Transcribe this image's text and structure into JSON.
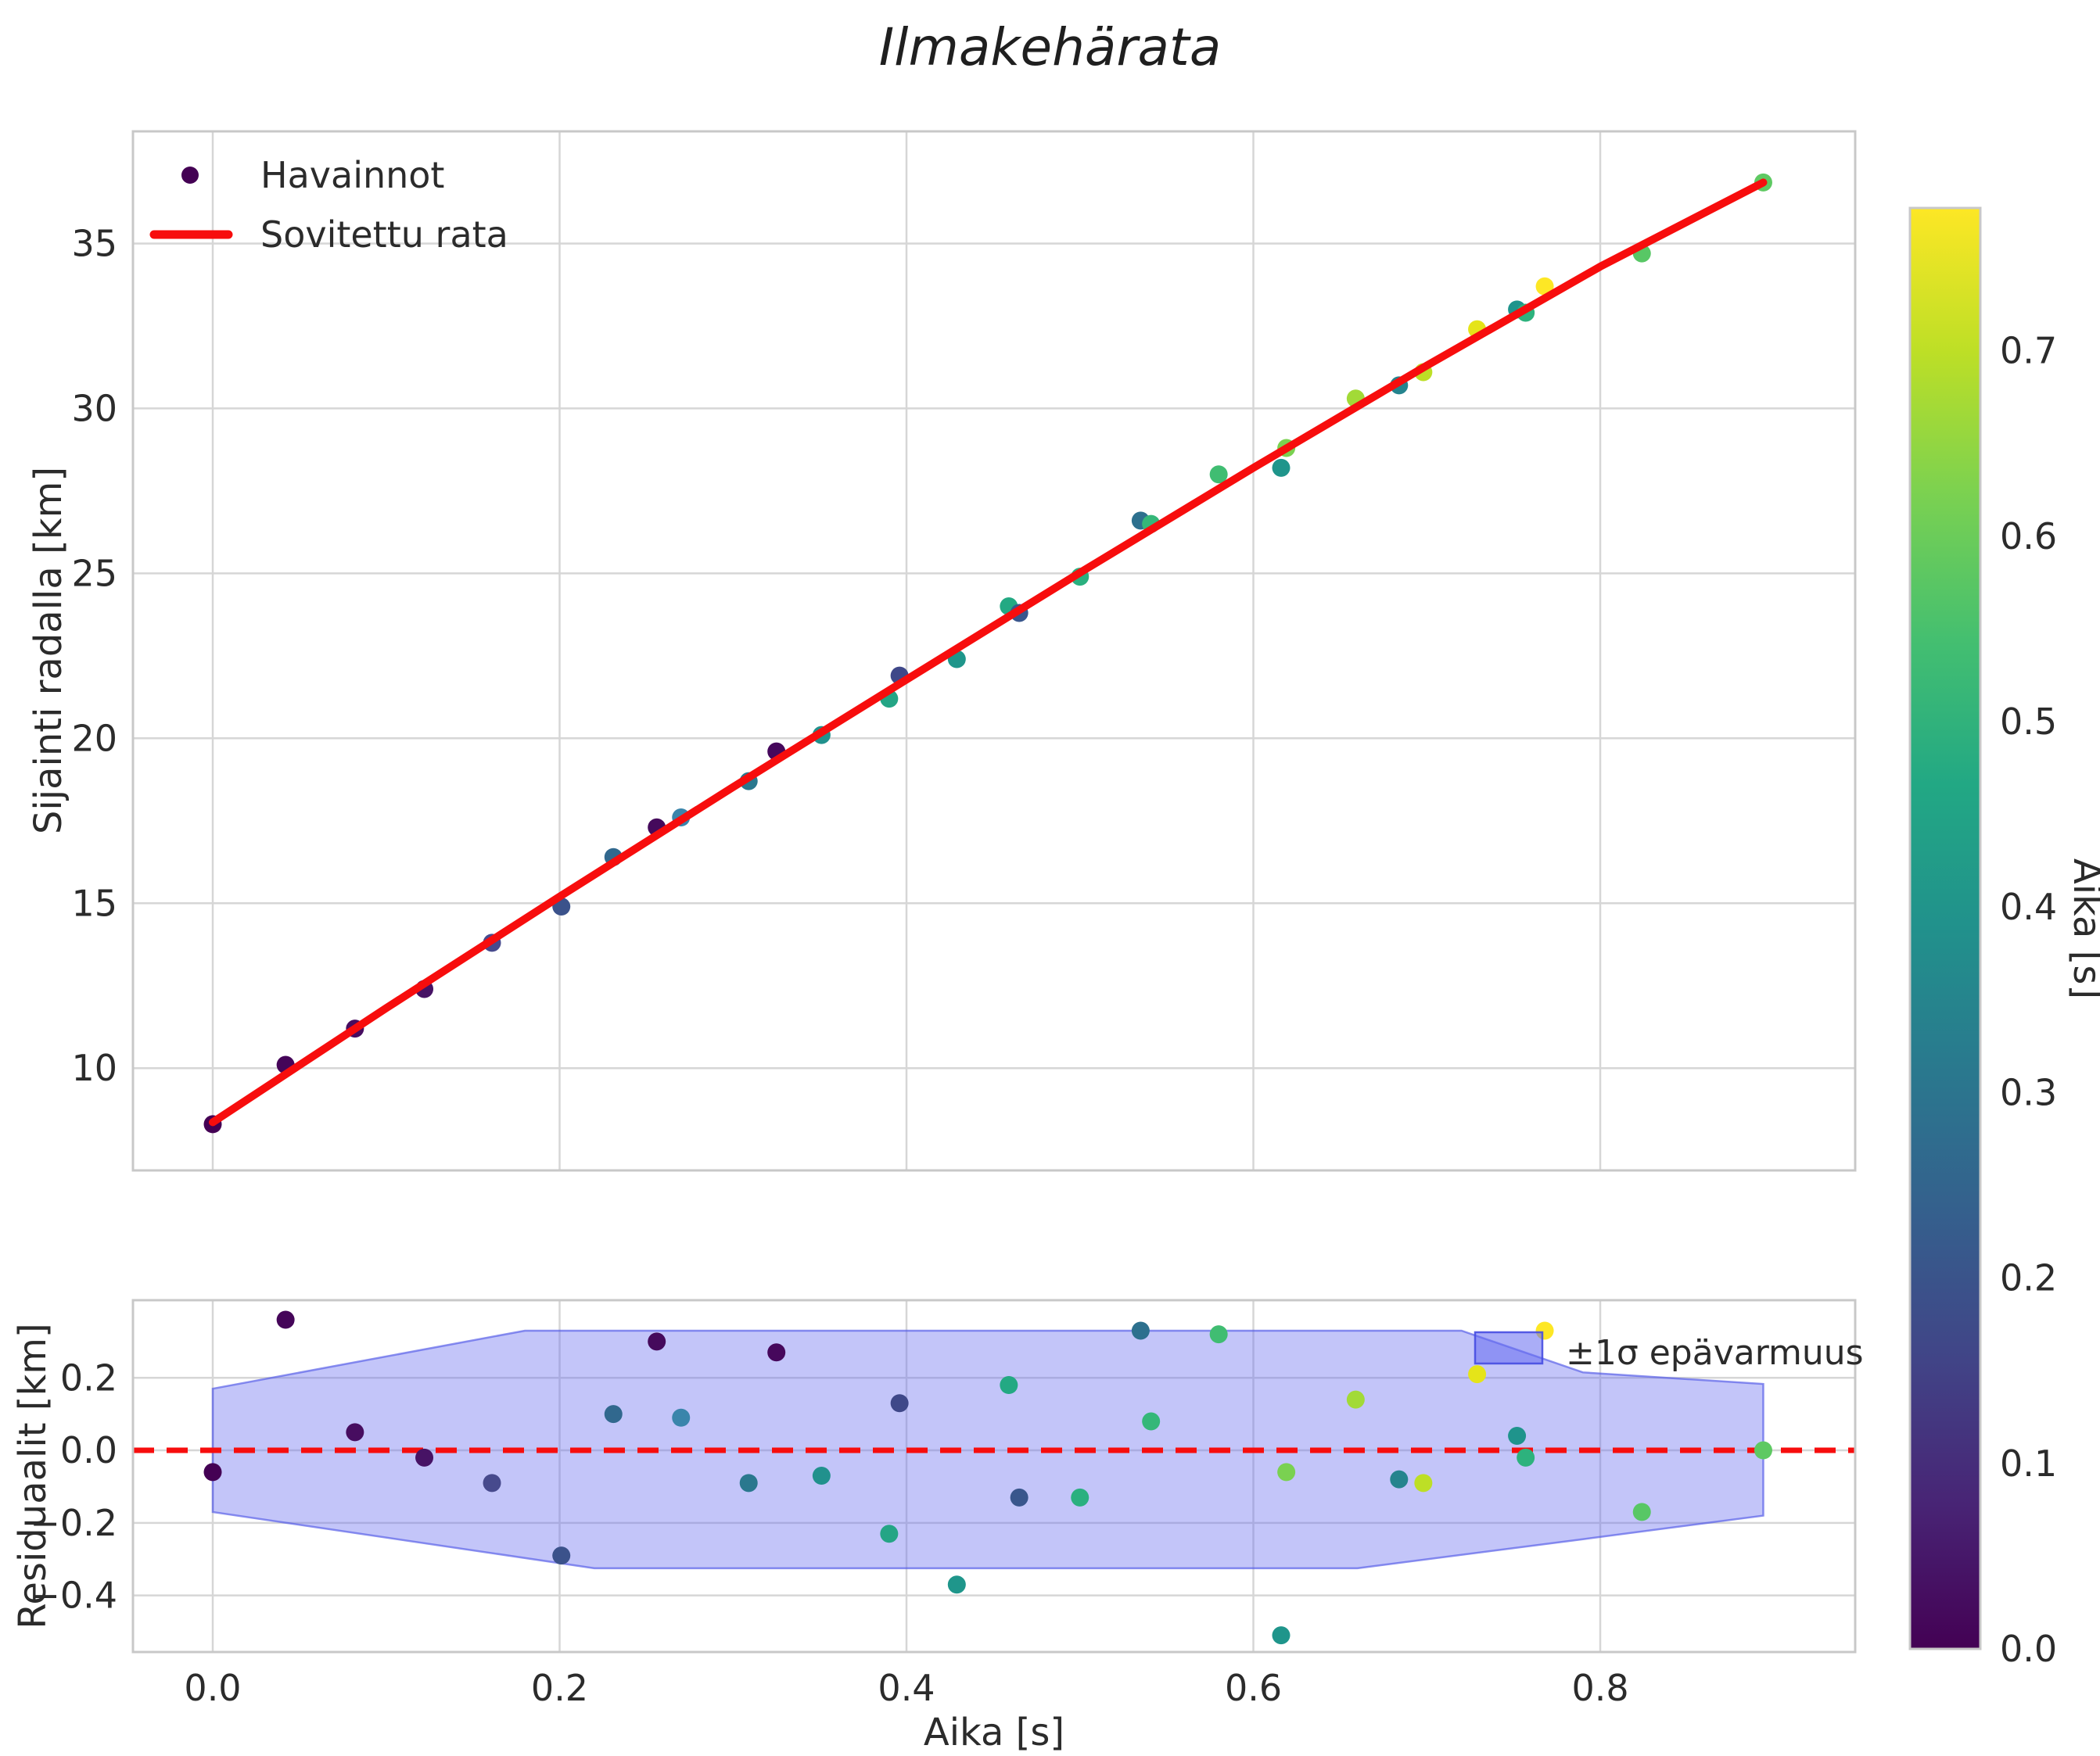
{
  "title": "Ilmakehärata",
  "legend": {
    "observations": "Havainnot",
    "fit": "Sovitettu rata",
    "band": "±1σ epävarmuus"
  },
  "colors": {
    "fit_line": "#f70d0d",
    "zero_line": "#f70d0d",
    "band_fill": "rgba(105,110,240,0.40)",
    "band_edge": "rgba(80,88,230,0.65)",
    "band_patch_fill": "rgba(100,106,240,0.55)",
    "grid": "#d6d6d6",
    "spine": "#c8c8c8",
    "text": "#2b2b2b",
    "first_marker": "#440154"
  },
  "chart_data": {
    "type": "scatter",
    "title": "Ilmakehärata",
    "xlabel": "Aika [s]",
    "xlim": [
      -0.046,
      0.947
    ],
    "xtick_values": [
      0.0,
      0.2,
      0.4,
      0.6,
      0.8
    ],
    "xtick_labels": [
      "0.0",
      "0.2",
      "0.4",
      "0.6",
      "0.8"
    ],
    "grid": true,
    "legend_position": "upper-left",
    "top_panel": {
      "ylabel": "Sijainti radalla [km]",
      "ylim": [
        6.9,
        38.4
      ],
      "ytick_values": [
        10,
        15,
        20,
        25,
        30,
        35
      ],
      "ytick_labels": [
        "10",
        "15",
        "20",
        "25",
        "30",
        "35"
      ]
    },
    "bottom_panel": {
      "ylabel": "Residuaalit [km]",
      "ylim": [
        -0.556,
        0.414
      ],
      "ytick_values": [
        0.2,
        0.0,
        -0.2,
        -0.4
      ],
      "ytick_labels": [
        "0.2",
        "0.0",
        "−0.2",
        "−0.4"
      ]
    },
    "colorbar": {
      "label": "Aika [s]",
      "vmin": 0.0,
      "vmax": 0.777,
      "tick_values": [
        0.0,
        0.1,
        0.2,
        0.3,
        0.4,
        0.5,
        0.6,
        0.7
      ],
      "tick_labels": [
        "0.0",
        "0.1",
        "0.2",
        "0.3",
        "0.4",
        "0.5",
        "0.6",
        "0.7"
      ],
      "colormap": "viridis",
      "stops": [
        "#440154",
        "#482475",
        "#414487",
        "#355f8d",
        "#2a788e",
        "#21918c",
        "#22a884",
        "#44bf70",
        "#7ad151",
        "#bddf26",
        "#fde725"
      ]
    },
    "series": [
      {
        "name": "Havainnot",
        "type": "scatter"
      },
      {
        "name": "Sovitettu rata",
        "type": "line"
      }
    ],
    "points": [
      {
        "t": 0.0,
        "y": 8.3,
        "residual": -0.06,
        "color": "#440154"
      },
      {
        "t": 0.042,
        "y": 10.1,
        "residual": 0.36,
        "color": "#450559"
      },
      {
        "t": 0.082,
        "y": 11.2,
        "residual": 0.05,
        "color": "#470d60"
      },
      {
        "t": 0.122,
        "y": 12.4,
        "residual": -0.02,
        "color": "#471365"
      },
      {
        "t": 0.161,
        "y": 13.8,
        "residual": -0.09,
        "color": "#474a8d"
      },
      {
        "t": 0.201,
        "y": 14.9,
        "residual": -0.29,
        "color": "#3b528b"
      },
      {
        "t": 0.231,
        "y": 16.4,
        "residual": 0.1,
        "color": "#31688e"
      },
      {
        "t": 0.256,
        "y": 17.3,
        "residual": 0.3,
        "color": "#450a5c"
      },
      {
        "t": 0.27,
        "y": 17.6,
        "residual": 0.09,
        "color": "#3a85ab"
      },
      {
        "t": 0.309,
        "y": 18.7,
        "residual": -0.09,
        "color": "#2a788e"
      },
      {
        "t": 0.325,
        "y": 19.6,
        "residual": 0.27,
        "color": "#46085c"
      },
      {
        "t": 0.351,
        "y": 20.1,
        "residual": -0.07,
        "color": "#21918d"
      },
      {
        "t": 0.39,
        "y": 21.2,
        "residual": -0.23,
        "color": "#24a585"
      },
      {
        "t": 0.396,
        "y": 21.9,
        "residual": 0.13,
        "color": "#3f4889"
      },
      {
        "t": 0.429,
        "y": 22.4,
        "residual": -0.37,
        "color": "#1f968b"
      },
      {
        "t": 0.459,
        "y": 24.0,
        "residual": 0.18,
        "color": "#23a983"
      },
      {
        "t": 0.465,
        "y": 23.8,
        "residual": -0.13,
        "color": "#39568c"
      },
      {
        "t": 0.5,
        "y": 24.9,
        "residual": -0.13,
        "color": "#2ab07f"
      },
      {
        "t": 0.535,
        "y": 26.6,
        "residual": 0.33,
        "color": "#2d708e"
      },
      {
        "t": 0.541,
        "y": 26.5,
        "residual": 0.08,
        "color": "#35b779"
      },
      {
        "t": 0.58,
        "y": 28.0,
        "residual": 0.32,
        "color": "#40bd72"
      },
      {
        "t": 0.616,
        "y": 28.2,
        "residual": -0.51,
        "color": "#1f958b"
      },
      {
        "t": 0.619,
        "y": 28.8,
        "residual": -0.06,
        "color": "#7ad151"
      },
      {
        "t": 0.659,
        "y": 30.3,
        "residual": 0.14,
        "color": "#a2da37"
      },
      {
        "t": 0.684,
        "y": 30.7,
        "residual": -0.08,
        "color": "#25848e"
      },
      {
        "t": 0.698,
        "y": 31.1,
        "residual": -0.09,
        "color": "#bddf26"
      },
      {
        "t": 0.729,
        "y": 32.4,
        "residual": 0.21,
        "color": "#e5e419"
      },
      {
        "t": 0.752,
        "y": 33.0,
        "residual": 0.04,
        "color": "#1f948c"
      },
      {
        "t": 0.757,
        "y": 32.9,
        "residual": -0.02,
        "color": "#2db27d"
      },
      {
        "t": 0.768,
        "y": 33.7,
        "residual": 0.33,
        "color": "#fde725"
      },
      {
        "t": 0.824,
        "y": 34.7,
        "residual": -0.17,
        "color": "#58c765"
      },
      {
        "t": 0.894,
        "y": 36.85,
        "residual": 0.0,
        "color": "#5ec962"
      }
    ],
    "fit_line": [
      [
        0.0,
        8.36
      ],
      [
        0.1,
        11.82
      ],
      [
        0.2,
        15.2
      ],
      [
        0.3,
        18.52
      ],
      [
        0.4,
        21.78
      ],
      [
        0.5,
        25.02
      ],
      [
        0.6,
        28.2
      ],
      [
        0.7,
        31.3
      ],
      [
        0.8,
        34.3
      ],
      [
        0.894,
        36.85
      ]
    ],
    "band": {
      "upper": [
        [
          0.0,
          0.17
        ],
        [
          0.18,
          0.33
        ],
        [
          0.72,
          0.33
        ],
        [
          0.79,
          0.215
        ],
        [
          0.894,
          0.183
        ]
      ],
      "lower": [
        [
          0.0,
          -0.17
        ],
        [
          0.22,
          -0.325
        ],
        [
          0.66,
          -0.325
        ],
        [
          0.79,
          -0.245
        ],
        [
          0.894,
          -0.18
        ]
      ]
    }
  }
}
